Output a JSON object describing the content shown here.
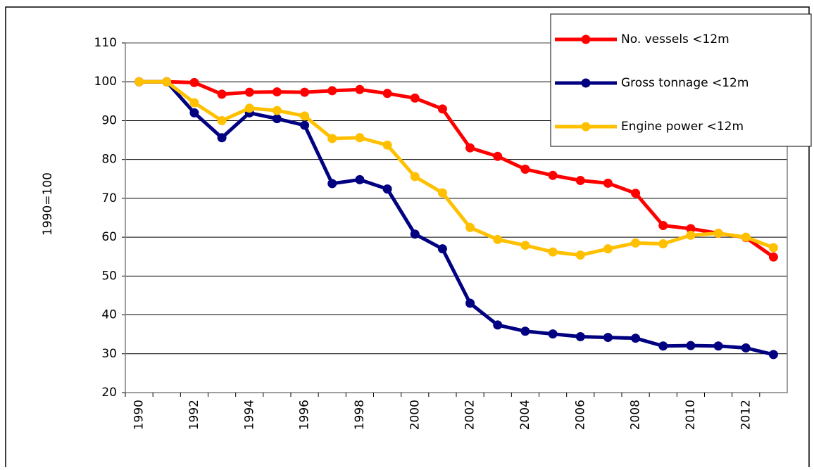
{
  "chart_data": {
    "type": "line",
    "y_label": "1990=100",
    "categories": [
      "1990",
      null,
      "1992",
      null,
      "1994",
      null,
      "1996",
      null,
      "1998",
      null,
      "2000",
      null,
      "2002",
      null,
      "2004",
      null,
      "2006",
      null,
      "2008",
      null,
      "2010",
      null,
      "2012",
      null
    ],
    "series": [
      {
        "name": "No. vessels <12m",
        "color": "#ff0000",
        "values": [
          100,
          100,
          99.8,
          96.8,
          97.3,
          97.4,
          97.3,
          97.7,
          98,
          97,
          95.8,
          93,
          83,
          80.8,
          77.5,
          75.9,
          74.6,
          73.9,
          71.3,
          63,
          62.2,
          61,
          59.9,
          54.9
        ]
      },
      {
        "name": "Gross tonnage <12m",
        "color": "#000080",
        "values": [
          100,
          100,
          92,
          85.6,
          92,
          90.5,
          88.8,
          73.8,
          74.8,
          72.4,
          60.8,
          57,
          43,
          37.4,
          35.8,
          35.1,
          34.4,
          34.2,
          34,
          32,
          32.1,
          32,
          31.5,
          29.8
        ]
      },
      {
        "name": "Engine power <12m",
        "color": "#ffc000",
        "values": [
          100,
          100,
          94.6,
          90,
          93.2,
          92.6,
          91.2,
          85.4,
          85.6,
          83.7,
          75.6,
          71.4,
          62.5,
          59.4,
          57.9,
          56.2,
          55.4,
          57,
          58.5,
          58.3,
          60.5,
          61,
          60,
          57.3
        ]
      }
    ],
    "ylim": [
      20,
      110
    ],
    "yticks": [
      20,
      30,
      40,
      50,
      60,
      70,
      80,
      90,
      100,
      110
    ],
    "grid": true,
    "legend": "top-right"
  }
}
